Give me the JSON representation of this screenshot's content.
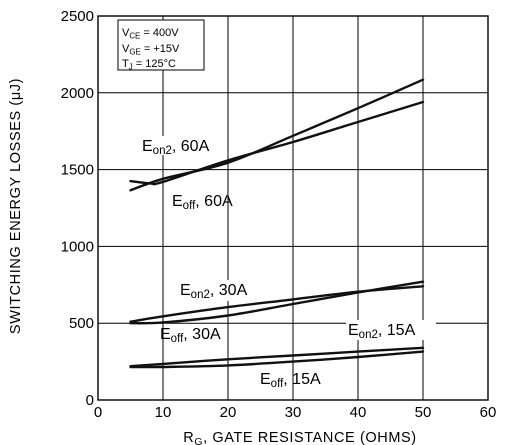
{
  "chart_data": {
    "type": "line",
    "title": "",
    "xlabel": {
      "main": "R",
      "sub": "G",
      "rest": ", GATE  RESISTANCE (OHMS)"
    },
    "ylabel": "SWITCHING  ENERGY  LOSSES (μJ)",
    "xlim": [
      0,
      60
    ],
    "ylim": [
      0,
      2500
    ],
    "xticks": [
      "0",
      "10",
      "20",
      "30",
      "40",
      "50",
      "60"
    ],
    "yticks": [
      "0",
      "500",
      "1000",
      "1500",
      "2000",
      "2500"
    ],
    "grid": true,
    "conditions": [
      {
        "main": "V",
        "sub": "CE",
        "rest": " =  400V"
      },
      {
        "main": "V",
        "sub": "GE",
        "rest": " =  +15V"
      },
      {
        "main": "T",
        "sub": "J",
        "rest": " = 125°C"
      }
    ],
    "series": [
      {
        "name": "Eon2, 60A",
        "label": {
          "main": "E",
          "sub": "on2",
          "rest": ", 60A"
        },
        "x": [
          5,
          10,
          20,
          30,
          40,
          50
        ],
        "y": [
          1365,
          1440,
          1545,
          1720,
          1900,
          2085
        ]
      },
      {
        "name": "Eoff, 60A",
        "label": {
          "main": "E",
          "sub": "off",
          "rest": ", 60A"
        },
        "x": [
          5,
          8,
          10,
          20,
          30,
          40,
          50
        ],
        "y": [
          1425,
          1410,
          1420,
          1560,
          1680,
          1810,
          1940
        ]
      },
      {
        "name": "Eon2, 30A",
        "label": {
          "main": "E",
          "sub": "on2",
          "rest": ", 30A"
        },
        "x": [
          5,
          10,
          20,
          30,
          40,
          50
        ],
        "y": [
          510,
          545,
          605,
          655,
          705,
          740
        ]
      },
      {
        "name": "Eoff, 30A",
        "label": {
          "main": "E",
          "sub": "off",
          "rest": ", 30A"
        },
        "x": [
          5,
          10,
          20,
          30,
          40,
          50
        ],
        "y": [
          500,
          505,
          550,
          625,
          700,
          770
        ]
      },
      {
        "name": "Eon2, 15A",
        "label": {
          "main": "E",
          "sub": "on2",
          "rest": ", 15A"
        },
        "x": [
          5,
          10,
          20,
          30,
          40,
          50
        ],
        "y": [
          220,
          235,
          265,
          290,
          315,
          340
        ]
      },
      {
        "name": "Eoff, 15A",
        "label": {
          "main": "E",
          "sub": "off",
          "rest": ", 15A"
        },
        "x": [
          5,
          10,
          20,
          30,
          40,
          50
        ],
        "y": [
          215,
          215,
          225,
          250,
          280,
          315
        ]
      }
    ]
  }
}
